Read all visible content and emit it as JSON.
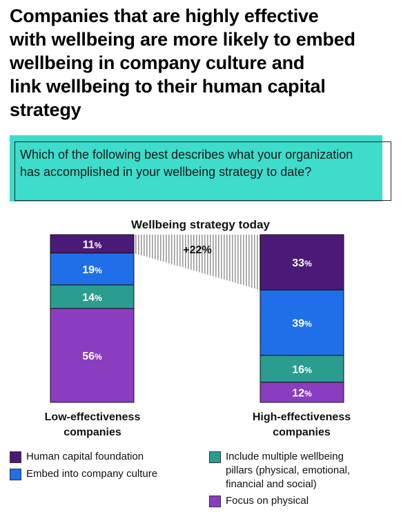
{
  "title": "Companies that are highly effective\nwith wellbeing are more likely to embed\nwellbeing in company culture and\nlink wellbeing to their human capital\nstrategy",
  "question": "Which of the following best describes what your organization has accomplished in your wellbeing strategy to date?",
  "chart_data": {
    "type": "bar",
    "stacked": true,
    "title": "Wellbeing strategy today",
    "categories": [
      "Low-effectiveness\ncompanies",
      "High-effectiveness\ncompanies"
    ],
    "series": [
      {
        "name": "Human capital foundation",
        "values": [
          11,
          33
        ],
        "color": "#4b1a78"
      },
      {
        "name": "Embed into company culture",
        "values": [
          19,
          39
        ],
        "color": "#1f6fe8"
      },
      {
        "name": "Include multiple wellbeing\npillars (physical, emotional,\nfinancial and social)",
        "values": [
          14,
          16
        ],
        "color": "#2a9d8f"
      },
      {
        "name": "Focus on physical",
        "values": [
          56,
          12
        ],
        "color": "#8a3dbf"
      }
    ],
    "value_suffix": "%",
    "annotation": "+22%",
    "ylim": [
      0,
      100
    ]
  }
}
